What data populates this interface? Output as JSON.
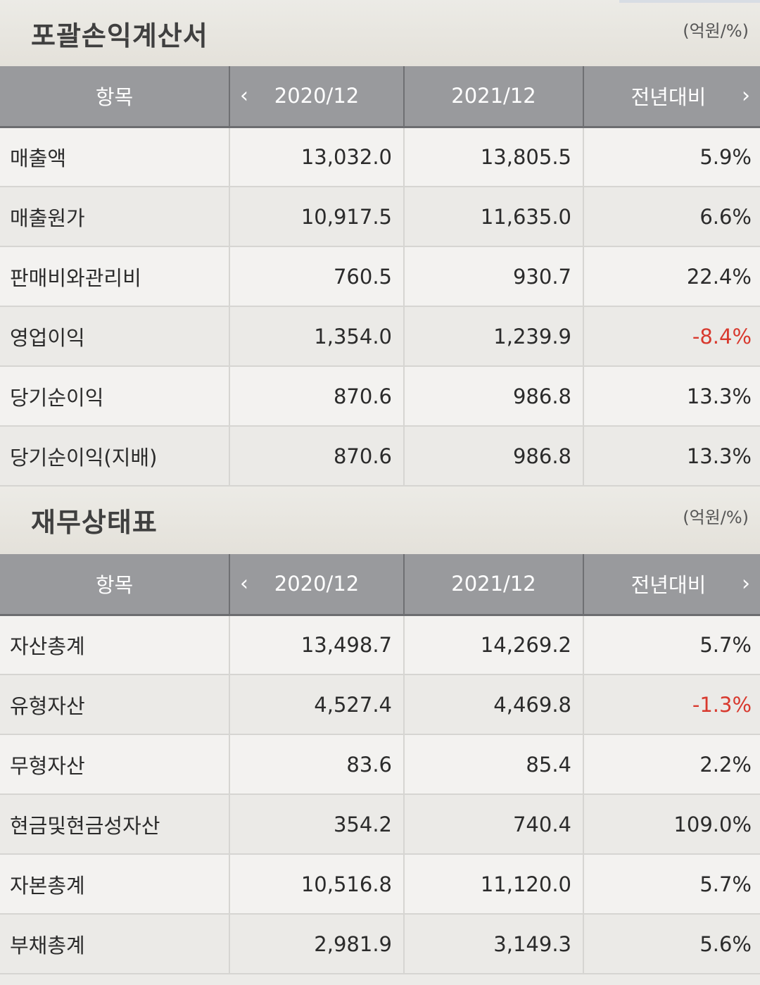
{
  "income": {
    "title": "포괄손익계산서",
    "unit": "(억원/%)",
    "headers": {
      "item": "항목",
      "prev": "2020/12",
      "curr": "2021/12",
      "yoy": "전년대비"
    },
    "rows": [
      {
        "label": "매출액",
        "prev": "13,032.0",
        "curr": "13,805.5",
        "yoy": "5.9%"
      },
      {
        "label": "매출원가",
        "prev": "10,917.5",
        "curr": "11,635.0",
        "yoy": "6.6%"
      },
      {
        "label": "판매비와관리비",
        "prev": "760.5",
        "curr": "930.7",
        "yoy": "22.4%"
      },
      {
        "label": "영업이익",
        "prev": "1,354.0",
        "curr": "1,239.9",
        "yoy": "-8.4%"
      },
      {
        "label": "당기순이익",
        "prev": "870.6",
        "curr": "986.8",
        "yoy": "13.3%"
      },
      {
        "label": "당기순이익(지배)",
        "prev": "870.6",
        "curr": "986.8",
        "yoy": "13.3%"
      }
    ]
  },
  "balance": {
    "title": "재무상태표",
    "unit": "(억원/%)",
    "headers": {
      "item": "항목",
      "prev": "2020/12",
      "curr": "2021/12",
      "yoy": "전년대비"
    },
    "rows": [
      {
        "label": "자산총계",
        "prev": "13,498.7",
        "curr": "14,269.2",
        "yoy": "5.7%"
      },
      {
        "label": "유형자산",
        "prev": "4,527.4",
        "curr": "4,469.8",
        "yoy": "-1.3%"
      },
      {
        "label": "무형자산",
        "prev": "83.6",
        "curr": "85.4",
        "yoy": "2.2%"
      },
      {
        "label": "현금및현금성자산",
        "prev": "354.2",
        "curr": "740.4",
        "yoy": "109.0%"
      },
      {
        "label": "자본총계",
        "prev": "10,516.8",
        "curr": "11,120.0",
        "yoy": "5.7%"
      },
      {
        "label": "부채총계",
        "prev": "2,981.9",
        "curr": "3,149.3",
        "yoy": "5.6%"
      }
    ]
  },
  "icons": {
    "prev": "chevron-left-icon",
    "next": "chevron-right-icon"
  },
  "colors": {
    "header_bg": "#999a9d",
    "negative": "#d8392e",
    "text": "#2b2b2b"
  }
}
